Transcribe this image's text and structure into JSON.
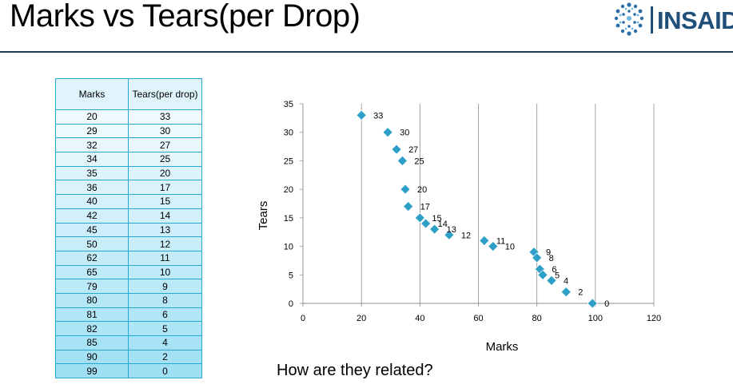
{
  "header": {
    "title": "Marks vs Tears(per Drop)",
    "logo_text": "INSAID"
  },
  "table": {
    "headers": [
      "Marks",
      "Tears(per drop)"
    ],
    "rows": [
      [
        "20",
        "33"
      ],
      [
        "29",
        "30"
      ],
      [
        "32",
        "27"
      ],
      [
        "34",
        "25"
      ],
      [
        "35",
        "20"
      ],
      [
        "36",
        "17"
      ],
      [
        "40",
        "15"
      ],
      [
        "42",
        "14"
      ],
      [
        "45",
        "13"
      ],
      [
        "50",
        "12"
      ],
      [
        "62",
        "11"
      ],
      [
        "65",
        "10"
      ],
      [
        "79",
        "9"
      ],
      [
        "80",
        "8"
      ],
      [
        "81",
        "6"
      ],
      [
        "82",
        "5"
      ],
      [
        "85",
        "4"
      ],
      [
        "90",
        "2"
      ],
      [
        "99",
        "0"
      ]
    ],
    "header_bg": "#dff4fb",
    "row_bg_top": "#f0fafe",
    "row_bg_bottom": "#9fe0f4",
    "border_color": "#25a9d4"
  },
  "subtitle": "How are they related?",
  "chart_data": {
    "type": "scatter",
    "xlabel": "Marks",
    "ylabel": "Tears",
    "xlim": [
      0,
      120
    ],
    "ylim": [
      0,
      35
    ],
    "xticks": [
      0,
      20,
      40,
      60,
      80,
      100,
      120
    ],
    "yticks": [
      0,
      5,
      10,
      15,
      20,
      25,
      30,
      35
    ],
    "grid": "vertical",
    "marker_color": "#2e9fc7",
    "x": [
      20,
      29,
      32,
      34,
      35,
      36,
      40,
      42,
      45,
      50,
      62,
      65,
      79,
      80,
      81,
      82,
      85,
      90,
      99
    ],
    "y": [
      33,
      30,
      27,
      25,
      20,
      17,
      15,
      14,
      13,
      12,
      11,
      10,
      9,
      8,
      6,
      5,
      4,
      2,
      0
    ],
    "data_labels": [
      "33",
      "30",
      "27",
      "25",
      "20",
      "17",
      "15",
      "14",
      "13",
      "12",
      "11",
      "10",
      "9",
      "8",
      "6",
      "5",
      "4",
      "2",
      "0"
    ]
  }
}
